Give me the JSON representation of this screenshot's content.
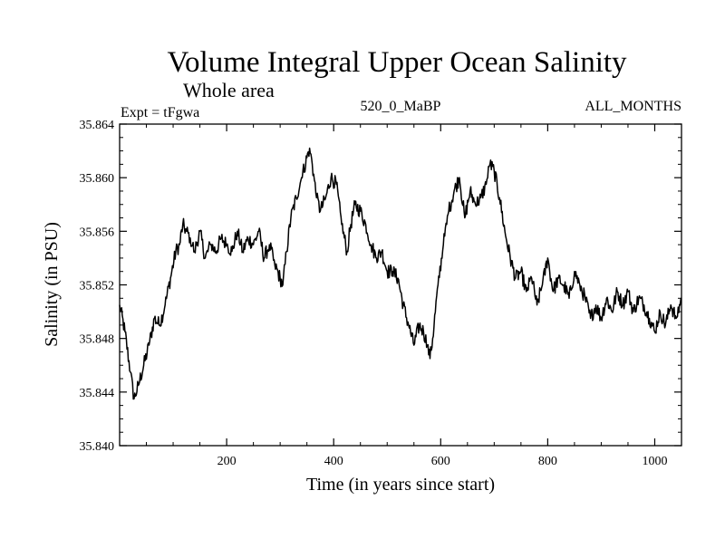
{
  "chart_data": {
    "type": "line",
    "title": "Volume Integral Upper Ocean Salinity",
    "subtitle": "Whole area",
    "header_left": "Expt = tFgwa",
    "header_center": "520_0_MaBP",
    "header_right": "ALL_MONTHS",
    "xlabel": "Time (in years since start)",
    "ylabel": "Salinity (in PSU)",
    "xlim": [
      0,
      1050
    ],
    "ylim": [
      35.84,
      35.864
    ],
    "x_ticks": [
      200,
      400,
      600,
      800,
      1000
    ],
    "x_tick_labels": [
      "200",
      "400",
      "600",
      "800",
      "1000"
    ],
    "y_ticks": [
      35.84,
      35.844,
      35.848,
      35.852,
      35.856,
      35.86,
      35.864
    ],
    "y_tick_labels": [
      "35.840",
      "35.844",
      "35.848",
      "35.852",
      "35.856",
      "35.860",
      "35.864"
    ],
    "grid": false,
    "series": [
      {
        "name": "Salinity",
        "color": "#000000",
        "x": [
          0,
          10,
          20,
          27,
          35,
          45,
          55,
          65,
          75,
          85,
          95,
          105,
          112,
          118,
          125,
          132,
          140,
          150,
          160,
          170,
          180,
          190,
          200,
          210,
          220,
          230,
          240,
          250,
          260,
          270,
          280,
          290,
          300,
          305,
          312,
          320,
          330,
          340,
          350,
          355,
          360,
          368,
          375,
          385,
          395,
          405,
          415,
          425,
          432,
          440,
          450,
          460,
          470,
          480,
          490,
          500,
          510,
          520,
          530,
          540,
          550,
          560,
          568,
          575,
          580,
          585,
          595,
          605,
          615,
          625,
          635,
          645,
          655,
          665,
          675,
          685,
          692,
          700,
          710,
          720,
          730,
          740,
          750,
          760,
          770,
          780,
          790,
          800,
          810,
          820,
          830,
          840,
          850,
          860,
          870,
          880,
          890,
          900,
          910,
          920,
          930,
          940,
          950,
          960,
          970,
          980,
          990,
          1000,
          1010,
          1020,
          1030,
          1040,
          1050
        ],
        "values": [
          35.8505,
          35.8485,
          35.8455,
          35.8435,
          35.8445,
          35.846,
          35.8475,
          35.8495,
          35.849,
          35.8505,
          35.8525,
          35.8545,
          35.855,
          35.8565,
          35.856,
          35.8555,
          35.8545,
          35.856,
          35.854,
          35.855,
          35.8545,
          35.8555,
          35.855,
          35.8545,
          35.856,
          35.8545,
          35.8555,
          35.855,
          35.856,
          35.854,
          35.855,
          35.8535,
          35.8525,
          35.852,
          35.8545,
          35.857,
          35.8585,
          35.86,
          35.8615,
          35.8622,
          35.861,
          35.8585,
          35.8575,
          35.8585,
          35.86,
          35.8595,
          35.8565,
          35.8545,
          35.8565,
          35.858,
          35.8575,
          35.8565,
          35.855,
          35.854,
          35.8545,
          35.853,
          35.853,
          35.8525,
          35.8505,
          35.849,
          35.8475,
          35.849,
          35.8485,
          35.8475,
          35.8465,
          35.848,
          35.852,
          35.855,
          35.8575,
          35.859,
          35.86,
          35.857,
          35.859,
          35.858,
          35.8585,
          35.8595,
          35.861,
          35.8605,
          35.8585,
          35.856,
          35.854,
          35.8525,
          35.853,
          35.8515,
          35.8525,
          35.8505,
          35.852,
          35.854,
          35.8515,
          35.8525,
          35.852,
          35.851,
          35.853,
          35.852,
          35.851,
          35.8495,
          35.8505,
          35.8495,
          35.851,
          35.85,
          35.8515,
          35.8505,
          35.8515,
          35.85,
          35.851,
          35.8505,
          35.8495,
          35.8485,
          35.85,
          35.849,
          35.8505,
          35.8495,
          35.851
        ]
      }
    ]
  }
}
